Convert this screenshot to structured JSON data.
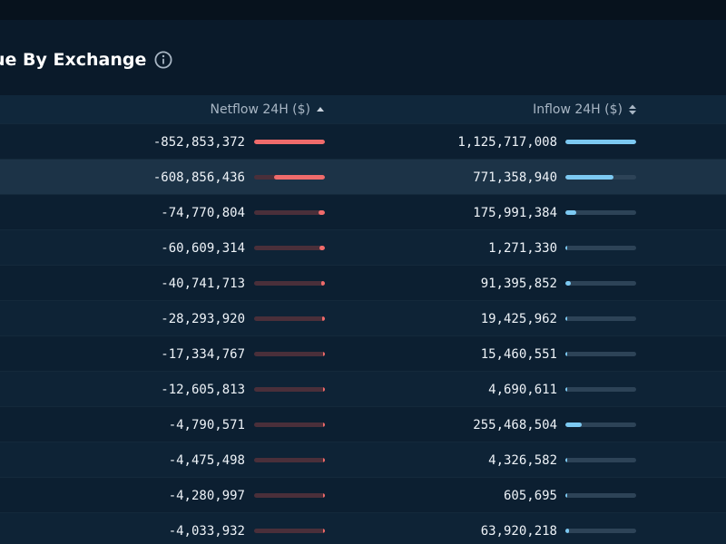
{
  "section": {
    "title": "ue By Exchange",
    "info_icon": "info-circle-icon"
  },
  "table": {
    "columns": [
      {
        "label": "Netflow 24H ($)",
        "sort_icon": "sort-ascending-icon"
      },
      {
        "label": "Inflow 24H ($)",
        "sort_icon": "sort-both-icon"
      }
    ],
    "colors": {
      "netflow_bar": "#ef6b6b",
      "netflow_track": "#4a2f3a",
      "inflow_bar": "#7cc9f2",
      "inflow_track": "#2d4357"
    },
    "rows": [
      {
        "netflow": "-852,853,372",
        "netflow_fraction": 1.0,
        "inflow": "1,125,717,008",
        "inflow_fraction": 1.0
      },
      {
        "netflow": "-608,856,436",
        "netflow_fraction": 0.714,
        "inflow": "771,358,940",
        "inflow_fraction": 0.685
      },
      {
        "netflow": "-74,770,804",
        "netflow_fraction": 0.088,
        "inflow": "175,991,384",
        "inflow_fraction": 0.156
      },
      {
        "netflow": "-60,609,314",
        "netflow_fraction": 0.071,
        "inflow": "1,271,330",
        "inflow_fraction": 0.001
      },
      {
        "netflow": "-40,741,713",
        "netflow_fraction": 0.048,
        "inflow": "91,395,852",
        "inflow_fraction": 0.081
      },
      {
        "netflow": "-28,293,920",
        "netflow_fraction": 0.033,
        "inflow": "19,425,962",
        "inflow_fraction": 0.017
      },
      {
        "netflow": "-17,334,767",
        "netflow_fraction": 0.02,
        "inflow": "15,460,551",
        "inflow_fraction": 0.014
      },
      {
        "netflow": "-12,605,813",
        "netflow_fraction": 0.015,
        "inflow": "4,690,611",
        "inflow_fraction": 0.004
      },
      {
        "netflow": "-4,790,571",
        "netflow_fraction": 0.006,
        "inflow": "255,468,504",
        "inflow_fraction": 0.227
      },
      {
        "netflow": "-4,475,498",
        "netflow_fraction": 0.005,
        "inflow": "4,326,582",
        "inflow_fraction": 0.004
      },
      {
        "netflow": "-4,280,997",
        "netflow_fraction": 0.005,
        "inflow": "605,695",
        "inflow_fraction": 0.001
      },
      {
        "netflow": "-4,033,932",
        "netflow_fraction": 0.005,
        "inflow": "63,920,218",
        "inflow_fraction": 0.057
      }
    ]
  }
}
